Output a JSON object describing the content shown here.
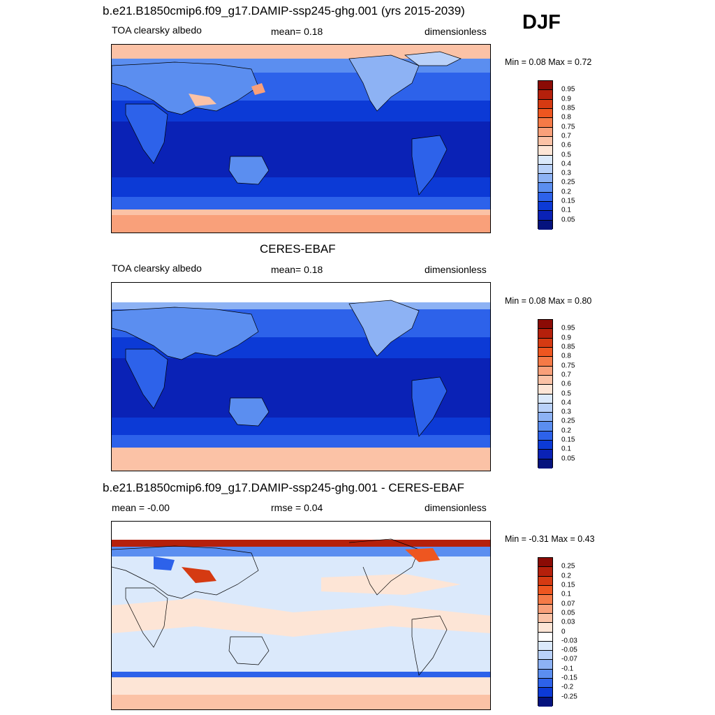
{
  "season": "DJF",
  "panels": [
    {
      "id": "model",
      "title": "b.e21.B1850cmip6.f09_g17.DAMIP-ssp245-ghg.001 (yrs 2015-2039)",
      "left_label": "TOA clearsky albedo",
      "center_label": "mean=   0.18",
      "right_label": "dimensionless",
      "minmax": "Min =   0.08 Max =   0.72",
      "colorbar_labels": [
        "0.95",
        "0.9",
        "0.85",
        "0.8",
        "0.75",
        "0.7",
        "0.6",
        "0.5",
        "0.4",
        "0.3",
        "0.25",
        "0.2",
        "0.15",
        "0.1",
        "0.05"
      ],
      "colorbar_colors": [
        "#8b0b05",
        "#b5200b",
        "#d53a12",
        "#ee5620",
        "#f57a47",
        "#f9a07a",
        "#fbc2a6",
        "#fde5d6",
        "#dbe9fb",
        "#b9d1f9",
        "#8db2f4",
        "#5b8ef0",
        "#2d62ea",
        "#0c3ad6",
        "#0a22b6",
        "#05137e"
      ]
    },
    {
      "id": "obs",
      "title": "CERES-EBAF",
      "left_label": "TOA clearsky albedo",
      "center_label": "mean=   0.18",
      "right_label": "dimensionless",
      "minmax": "Min =   0.08 Max =   0.80",
      "colorbar_labels": [
        "0.95",
        "0.9",
        "0.85",
        "0.8",
        "0.75",
        "0.7",
        "0.6",
        "0.5",
        "0.4",
        "0.3",
        "0.25",
        "0.2",
        "0.15",
        "0.1",
        "0.05"
      ],
      "colorbar_colors": [
        "#8b0b05",
        "#b5200b",
        "#d53a12",
        "#ee5620",
        "#f57a47",
        "#f9a07a",
        "#fbc2a6",
        "#fde5d6",
        "#dbe9fb",
        "#b9d1f9",
        "#8db2f4",
        "#5b8ef0",
        "#2d62ea",
        "#0c3ad6",
        "#0a22b6",
        "#05137e"
      ]
    },
    {
      "id": "diff",
      "title": "b.e21.B1850cmip6.f09_g17.DAMIP-ssp245-ghg.001 - CERES-EBAF",
      "left_label": "mean =  -0.00",
      "center_label": "rmse =   0.04",
      "right_label": "dimensionless",
      "minmax": "Min =  -0.31 Max =   0.43",
      "colorbar_labels": [
        "0.25",
        "0.2",
        "0.15",
        "0.1",
        "0.07",
        "0.05",
        "0.03",
        "0",
        "-0.03",
        "-0.05",
        "-0.07",
        "-0.1",
        "-0.15",
        "-0.2",
        "-0.25"
      ],
      "colorbar_colors": [
        "#8b0b05",
        "#b5200b",
        "#d53a12",
        "#ee5620",
        "#f57a47",
        "#f9a07a",
        "#fbc2a6",
        "#fde5d6",
        "#ffffff",
        "#dbe9fb",
        "#b9d1f9",
        "#8db2f4",
        "#5b8ef0",
        "#2d62ea",
        "#0c3ad6",
        "#05137e"
      ]
    }
  ]
}
